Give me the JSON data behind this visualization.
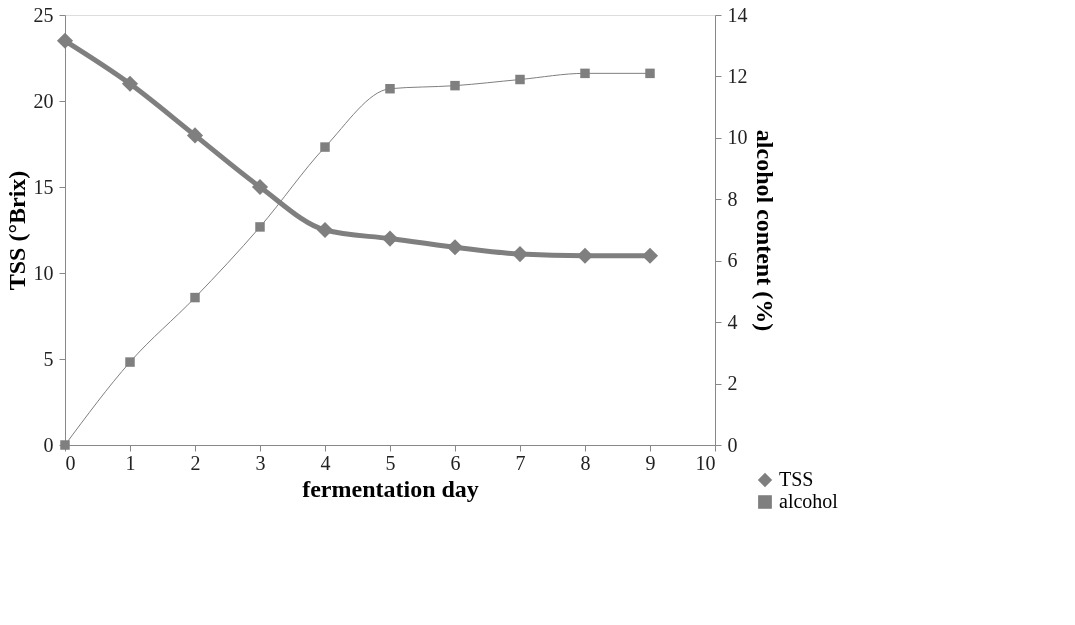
{
  "chart_data": {
    "type": "line",
    "xlabel": "fermentation day",
    "ylabel": "TSS (°Brix)",
    "y2label": "alcohol content (%)",
    "x": [
      0,
      1,
      2,
      3,
      4,
      5,
      6,
      7,
      8,
      9
    ],
    "xlim": [
      0,
      10
    ],
    "xticks": [
      0,
      1,
      2,
      3,
      4,
      5,
      6,
      7,
      8,
      9,
      10
    ],
    "ylim": [
      0,
      25
    ],
    "yticks": [
      0,
      5,
      10,
      15,
      20,
      25
    ],
    "y2lim": [
      0,
      14
    ],
    "y2ticks": [
      0,
      2,
      4,
      6,
      8,
      10,
      12,
      14
    ],
    "grid": false,
    "legend": "bottom right",
    "series": [
      {
        "name": "TSS",
        "color": "#7f7f7f",
        "marker": "diamond",
        "values": [
          23.5,
          21,
          18,
          15,
          12.5,
          12.0,
          11.5,
          11.1,
          11.0,
          11.0
        ]
      },
      {
        "name": "alcohol",
        "color": "#7f7f7f",
        "marker": "square",
        "axis": "y2",
        "values": [
          0,
          2.7,
          4.8,
          7.1,
          9.7,
          11.6,
          11.7,
          11.9,
          12.1,
          12.1
        ]
      }
    ]
  }
}
